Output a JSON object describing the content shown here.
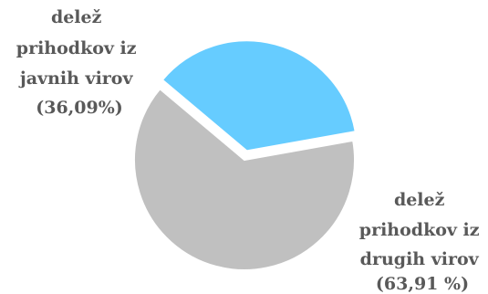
{
  "chart_data": {
    "type": "pie",
    "slices": [
      {
        "label_lines": [
          "delež",
          "prihodkov iz",
          "javnih virov",
          "(36,09%)"
        ],
        "value": 36.09,
        "color": "#66CCFF",
        "exploded": true
      },
      {
        "label_lines": [
          "delež",
          "prihodkov iz",
          "drugih virov",
          "(63,91 %)"
        ],
        "value": 63.91,
        "color": "#C0C0C0",
        "exploded": false
      }
    ],
    "title": "",
    "legend": "none",
    "label_color": "#595959"
  }
}
